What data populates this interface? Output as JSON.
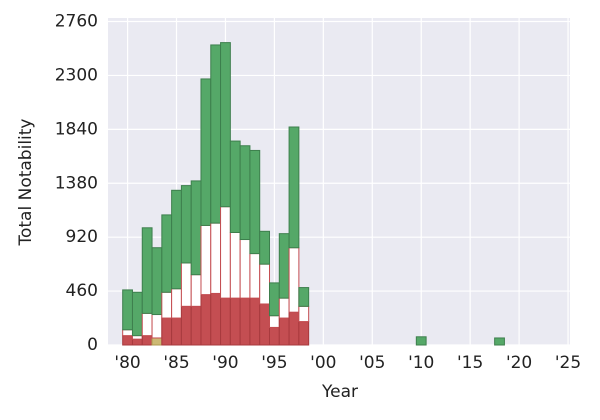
{
  "chart_data": {
    "type": "stacked-bar",
    "x_label": "Year",
    "y_label": "Total Notability",
    "x": [
      1980,
      1981,
      1982,
      1983,
      1984,
      1985,
      1986,
      1987,
      1988,
      1989,
      1990,
      1991,
      1992,
      1993,
      1994,
      1995,
      1996,
      1997,
      1998,
      2010,
      2018
    ],
    "series": [
      {
        "color": "#ccb974",
        "edge": "#b09a50",
        "values": [
          0,
          0,
          0,
          60,
          0,
          0,
          0,
          0,
          0,
          0,
          0,
          0,
          0,
          0,
          0,
          0,
          0,
          0,
          0,
          0,
          0
        ]
      },
      {
        "color": "#c44e52",
        "edge": "#a83a3e",
        "values": [
          80,
          50,
          80,
          0,
          230,
          230,
          330,
          330,
          430,
          440,
          400,
          400,
          400,
          400,
          350,
          150,
          230,
          280,
          200,
          0,
          0
        ]
      },
      {
        "color": "#ffffff",
        "edge": "#c44e52",
        "values": [
          50,
          30,
          190,
          200,
          220,
          250,
          370,
          270,
          590,
          600,
          780,
          560,
          500,
          380,
          340,
          100,
          170,
          550,
          130,
          0,
          0
        ]
      },
      {
        "color": "#55a868",
        "edge": "#3d7f4d",
        "values": [
          340,
          370,
          730,
          570,
          660,
          840,
          660,
          800,
          1250,
          1520,
          1400,
          780,
          800,
          880,
          280,
          280,
          550,
          1030,
          160,
          70,
          60
        ]
      }
    ],
    "xlim": [
      1978,
      2025.2
    ],
    "ylim": [
      0,
      2790
    ],
    "xticks": [
      {
        "value": 1980,
        "label": "'80"
      },
      {
        "value": 1985,
        "label": "'85"
      },
      {
        "value": 1990,
        "label": "'90"
      },
      {
        "value": 1995,
        "label": "'95"
      },
      {
        "value": 2000,
        "label": "'00"
      },
      {
        "value": 2005,
        "label": "'05"
      },
      {
        "value": 2010,
        "label": "'10"
      },
      {
        "value": 2015,
        "label": "'15"
      },
      {
        "value": 2020,
        "label": "'20"
      },
      {
        "value": 2025,
        "label": "'25"
      }
    ],
    "yticks": [
      0,
      460,
      920,
      1380,
      1840,
      2300,
      2760
    ],
    "grid": true
  }
}
